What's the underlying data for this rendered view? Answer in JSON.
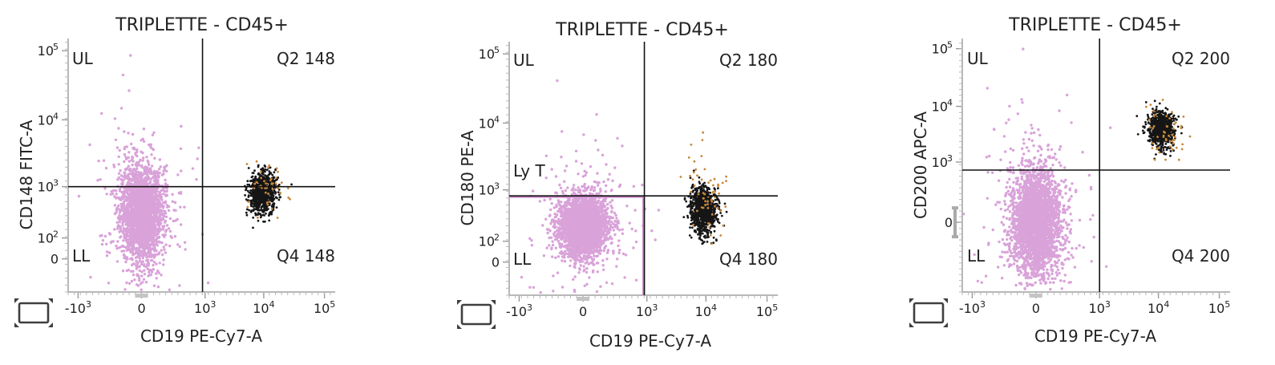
{
  "colors": {
    "negative": "#d9a2d9",
    "negative_outline": "#b48ab4",
    "positive": "#151515",
    "highlight": "#c8873a",
    "ly_t_gate": "#cf8fcf"
  },
  "chart_data": [
    {
      "type": "scatter",
      "title": "TRIPLETTE - CD45+",
      "xlabel": "CD19 PE-Cy7-A",
      "ylabel": "CD148 FITC-A",
      "x_scale": "biexponential",
      "y_scale": "biexponential",
      "x_ticks": [
        "-10^3",
        "0",
        "10^3",
        "10^4",
        "10^5"
      ],
      "y_ticks": [
        "0",
        "10^2",
        "10^3",
        "10^4",
        "10^5"
      ],
      "quadrant_threshold": {
        "x": 900,
        "y": 1000
      },
      "quadrant_labels": {
        "UL": "UL",
        "UR": "Q2 148",
        "LL": "LL",
        "LR": "Q4 148"
      },
      "populations": [
        {
          "color": "negative",
          "x_center": 0,
          "y_center": 350,
          "count": 2600
        },
        {
          "color": "positive",
          "x_center": 9500,
          "y_center": 800,
          "count": 850
        },
        {
          "color": "highlight",
          "x_center": 11000,
          "y_center": 800,
          "count": 45
        }
      ],
      "grid": false
    },
    {
      "type": "scatter",
      "title": "TRIPLETTE - CD45+",
      "xlabel": "CD19 PE-Cy7-A",
      "ylabel": "CD180 PE-A",
      "x_scale": "biexponential",
      "y_scale": "biexponential",
      "x_ticks": [
        "-10^3",
        "0",
        "10^3",
        "10^4",
        "10^5"
      ],
      "y_ticks": [
        "0",
        "10^2",
        "10^3",
        "10^4",
        "10^5"
      ],
      "quadrant_threshold": {
        "x": 900,
        "y": 800
      },
      "quadrant_labels": {
        "UL": "UL",
        "UR": "Q2 180",
        "LL": "LL",
        "LR": "Q4 180"
      },
      "gate_label": "Ly T",
      "populations": [
        {
          "color": "negative",
          "x_center": 0,
          "y_center": 230,
          "count": 2600
        },
        {
          "color": "positive",
          "x_center": 9000,
          "y_center": 450,
          "count": 900
        },
        {
          "color": "highlight",
          "x_center": 11000,
          "y_center": 900,
          "count": 60
        }
      ],
      "grid": false
    },
    {
      "type": "scatter",
      "title": "TRIPLETTE - CD45+",
      "xlabel": "CD19 PE-Cy7-A",
      "ylabel": "CD200 APC-A",
      "x_scale": "biexponential",
      "y_scale": "biexponential",
      "x_ticks": [
        "-10^3",
        "0",
        "10^3",
        "10^4",
        "10^5"
      ],
      "y_ticks": [
        "0",
        "10^3",
        "10^4",
        "10^5"
      ],
      "quadrant_threshold": {
        "x": 1000,
        "y": 700
      },
      "quadrant_labels": {
        "UL": "UL",
        "UR": "Q2 200",
        "LL": "LL",
        "LR": "Q4 200"
      },
      "populations": [
        {
          "color": "negative",
          "x_center": 0,
          "y_center": 0,
          "count": 2900
        },
        {
          "color": "positive",
          "x_center": 11000,
          "y_center": 4000,
          "count": 850
        },
        {
          "color": "highlight",
          "x_center": 13000,
          "y_center": 3500,
          "count": 50
        }
      ],
      "grid": false
    }
  ]
}
